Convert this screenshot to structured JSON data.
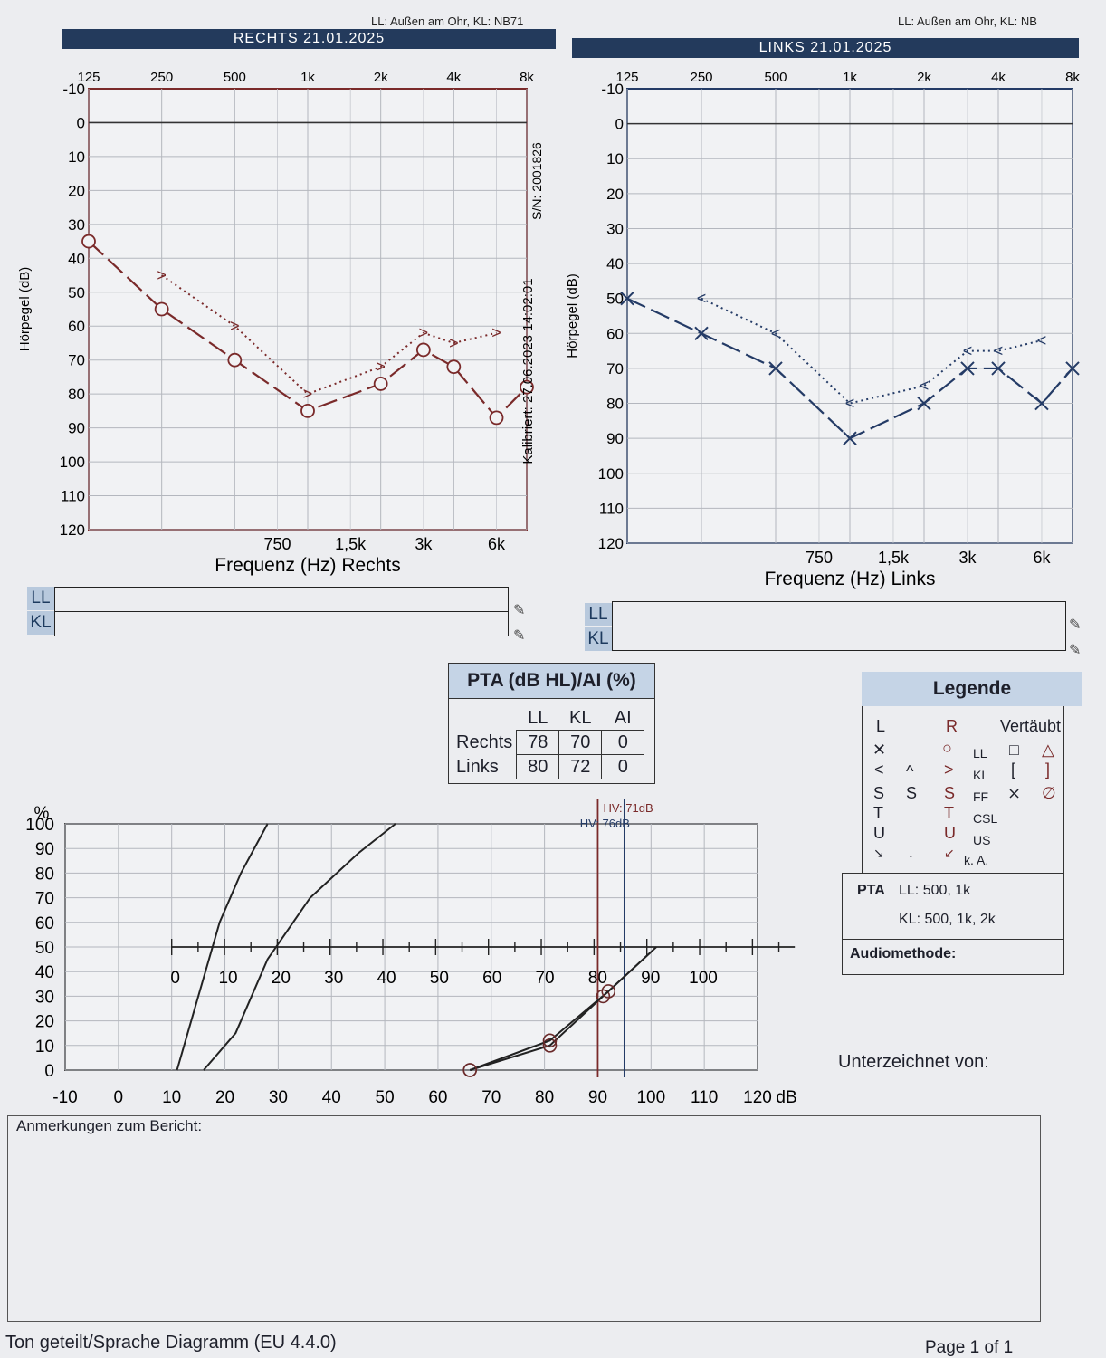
{
  "header": {
    "right_note": "LL: Außen am Ohr, KL: NB71",
    "left_note": "LL: Außen am Ohr, KL: NB",
    "right_title": "RECHTS 21.01.2025",
    "left_title": "LINKS 21.01.2025"
  },
  "audiogram": {
    "freq_top_labels": [
      "125",
      "250",
      "500",
      "1k",
      "2k",
      "4k",
      "8k"
    ],
    "freq_bottom_labels": [
      "750",
      "1,5k",
      "3k",
      "6k"
    ],
    "db_labels": [
      "-10",
      "0",
      "10",
      "20",
      "30",
      "40",
      "50",
      "60",
      "70",
      "80",
      "90",
      "100",
      "110",
      "120"
    ],
    "y_label": "Hörpegel (dB)",
    "right_x_label": "Frequenz (Hz) Rechts",
    "left_x_label": "Frequenz (Hz) Links",
    "serial": "S/N: 2001826",
    "calibrated": "Kalibriert: 27.06.2023 14:02:01"
  },
  "summary_tags": {
    "ll": "LL",
    "kl": "KL"
  },
  "pta": {
    "title": "PTA (dB HL)/AI (%)",
    "columns": [
      "LL",
      "KL",
      "AI"
    ],
    "rows": [
      {
        "label": "Rechts",
        "values": [
          "78",
          "70",
          "0"
        ]
      },
      {
        "label": "Links",
        "values": [
          "80",
          "72",
          "0"
        ]
      }
    ]
  },
  "legend": {
    "title": "Legende",
    "col_l": "L",
    "col_r": "R",
    "col_masked": "Vertäubt",
    "row_labels": [
      "LL",
      "KL",
      "FF",
      "CSL",
      "US",
      "k. A."
    ],
    "pta_label": "PTA",
    "pta_ll": "LL: 500, 1k",
    "pta_kl": "KL: 500, 1k, 2k",
    "method_label": "Audiomethode:"
  },
  "signed_by": "Unterzeichnet von:",
  "remarks_title": "Anmerkungen zum Bericht:",
  "footer": {
    "left": "Ton geteilt/Sprache Diagramm (EU 4.4.0)",
    "right": "Page 1 of 1"
  },
  "colors": {
    "right_ear": "#7a2a2a",
    "left_ear": "#243b66",
    "header_bar": "#233a5c",
    "grid": "#b4b7be"
  },
  "chart_data": [
    {
      "type": "line",
      "title": "RECHTS 21.01.2025",
      "xlabel": "Frequenz (Hz) Rechts",
      "ylabel": "Hörpegel (dB)",
      "x_scale": "log",
      "ylim": [
        120,
        -10
      ],
      "series": [
        {
          "name": "LL",
          "x": [
            125,
            250,
            500,
            1000,
            2000,
            3000,
            4000,
            6000,
            8000
          ],
          "values": [
            35,
            55,
            70,
            85,
            77,
            67,
            72,
            87,
            78
          ]
        },
        {
          "name": "KL",
          "x": [
            250,
            500,
            1000,
            2000,
            3000,
            4000,
            6000
          ],
          "values": [
            45,
            60,
            80,
            72,
            62,
            65,
            62
          ]
        }
      ]
    },
    {
      "type": "line",
      "title": "LINKS 21.01.2025",
      "xlabel": "Frequenz (Hz) Links",
      "ylabel": "Hörpegel (dB)",
      "x_scale": "log",
      "ylim": [
        120,
        -10
      ],
      "series": [
        {
          "name": "LL",
          "x": [
            125,
            250,
            500,
            1000,
            2000,
            3000,
            4000,
            6000,
            8000
          ],
          "values": [
            50,
            60,
            70,
            90,
            80,
            70,
            70,
            80,
            70
          ]
        },
        {
          "name": "KL",
          "x": [
            250,
            500,
            1000,
            2000,
            3000,
            4000,
            6000
          ],
          "values": [
            50,
            60,
            80,
            75,
            65,
            65,
            62
          ]
        }
      ]
    },
    {
      "type": "line",
      "title": "",
      "xlabel": "dB",
      "ylabel": "%",
      "x_ticks": [
        "-10",
        "0",
        "10",
        "20",
        "30",
        "40",
        "50",
        "60",
        "70",
        "80",
        "90",
        "100",
        "110",
        "120"
      ],
      "y_ticks": [
        "0",
        "10",
        "20",
        "30",
        "40",
        "50",
        "60",
        "70",
        "80",
        "90",
        "100"
      ],
      "axis_ticks": [
        "0",
        "10",
        "20",
        "30",
        "40",
        "50",
        "60",
        "70",
        "80",
        "90",
        "100"
      ],
      "xlim": [
        -10,
        120
      ],
      "ylim": [
        0,
        100
      ],
      "markers": [
        {
          "label": "HV: 71dB",
          "x": 90,
          "color": "#7a2a2a"
        },
        {
          "label": "HV: 76dB",
          "x": 95,
          "color": "#243b66"
        }
      ],
      "series": [
        {
          "x": [
            11,
            15,
            19,
            23,
            28
          ],
          "values": [
            0,
            30,
            60,
            80,
            100
          ]
        },
        {
          "x": [
            16,
            22,
            28,
            36,
            45,
            52
          ],
          "values": [
            0,
            15,
            45,
            70,
            88,
            100
          ]
        },
        {
          "x": [
            66,
            81,
            91,
            101
          ],
          "values": [
            0,
            10,
            30,
            50
          ]
        },
        {
          "x": [
            66,
            81,
            92,
            100
          ],
          "values": [
            0,
            12,
            32,
            48
          ]
        }
      ]
    }
  ]
}
